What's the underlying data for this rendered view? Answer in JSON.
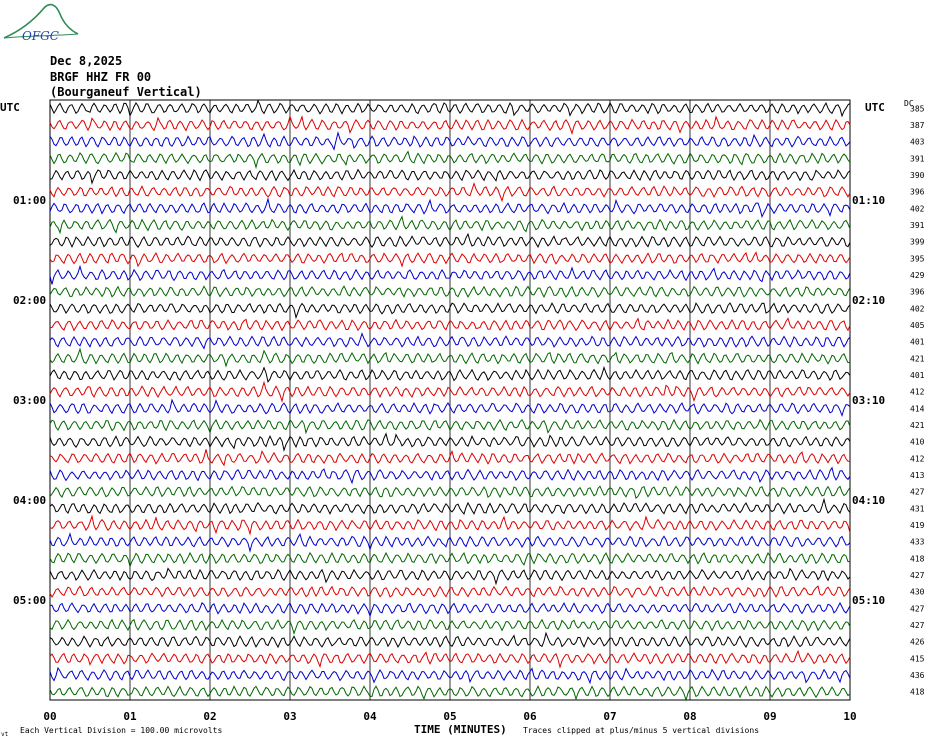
{
  "header": {
    "logo_text": "OFGC",
    "date": "Dec 8,2025",
    "station": "BRGF HHZ FR 00",
    "site": "(Bourganeuf Vertical)"
  },
  "axes": {
    "left_unit": "UTC",
    "right_unit": "UTC",
    "dc_label": "DC",
    "xlabel": "TIME (MINUTES)",
    "footer_left": "Each Vertical Division =  100.00 microvolts",
    "footer_right": "Traces clipped at plus/minus 5 vertical divisions",
    "corner_mark": "vt"
  },
  "colors": {
    "trace_cycle": [
      "#000000",
      "#dd0000",
      "#0000cc",
      "#006600"
    ],
    "grid": "#000000"
  },
  "chart_data": {
    "type": "line",
    "title": "BRGF HHZ FR 00 (Bourganeuf Vertical)",
    "xlabel": "TIME (MINUTES)",
    "xlim": [
      0,
      10
    ],
    "x_ticks": [
      "00",
      "01",
      "02",
      "03",
      "04",
      "05",
      "06",
      "07",
      "08",
      "09",
      "10"
    ],
    "grid": true,
    "rows_per_hour": 6,
    "left_hour_labels": [
      "01:00",
      "02:00",
      "03:00",
      "04:00",
      "05:00"
    ],
    "right_hour_labels": [
      "01:10",
      "02:10",
      "03:10",
      "04:10",
      "05:10"
    ],
    "dc_offsets": [
      "385",
      "387",
      "403",
      "391",
      "390",
      "396",
      "402",
      "391",
      "399",
      "395",
      "429",
      "396",
      "402",
      "405",
      "401",
      "421",
      "401",
      "412",
      "414",
      "421",
      "410",
      "412",
      "413",
      "427",
      "431",
      "419",
      "433",
      "418",
      "427",
      "430",
      "427",
      "427",
      "426",
      "415",
      "436",
      "418"
    ]
  }
}
